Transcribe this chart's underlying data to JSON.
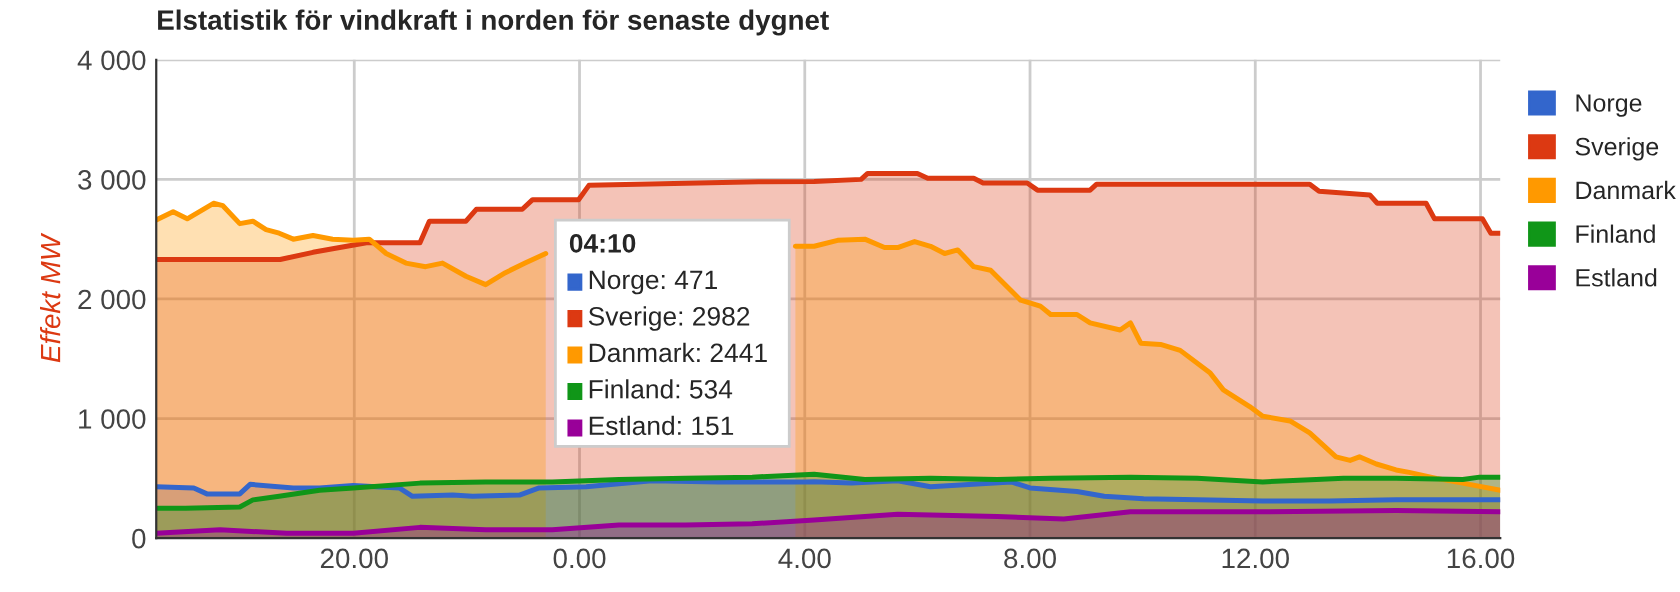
{
  "chart_data": {
    "type": "area",
    "title": "Elstatistik för vindkraft i norden för senaste dygnet",
    "ylabel": "Effekt MW",
    "xlim": [
      "2000-01-01T16:29",
      "2000-01-02T16:21"
    ],
    "xticks": [
      {
        "value": "2000-01-01T20:00",
        "label": "20.00"
      },
      {
        "value": "2000-01-02T00:00",
        "label": "0.00"
      },
      {
        "value": "2000-01-02T04:00",
        "label": "4.00"
      },
      {
        "value": "2000-01-02T08:00",
        "label": "8.00"
      },
      {
        "value": "2000-01-02T12:00",
        "label": "12.00"
      },
      {
        "value": "2000-01-02T16:00",
        "label": "16.00"
      }
    ],
    "ylim": [
      0,
      4000
    ],
    "yticks": [
      0,
      {
        "value": 1000,
        "label": "1 000"
      },
      {
        "value": 2000,
        "label": "2 000"
      },
      {
        "value": 3000,
        "label": "3 000"
      },
      {
        "value": 4000,
        "label": "4 000"
      }
    ],
    "grid": true,
    "legend": "right",
    "annotations": [
      "04:10",
      "Norge: 471",
      "Sverige: 2982",
      "Danmark: 2441",
      "Finland: 534",
      "Estland: 151"
    ],
    "series": [
      {
        "name": "Norge",
        "color": "#3366cc",
        "x": [
          "2000-01-01T16:29",
          "2000-01-01T17:09",
          "2000-01-01T17:23",
          "2000-01-01T17:58",
          "2000-01-01T18:09",
          "2000-01-01T18:55",
          "2000-01-01T19:23",
          "2000-01-01T19:59",
          "2000-01-01T20:48",
          "2000-01-01T21:02",
          "2000-01-01T21:45",
          "2000-01-01T22:06",
          "2000-01-01T22:56",
          "2000-01-01T23:17",
          "2000-01-02T00:07",
          "2000-01-02T01:17",
          "2000-01-02T02:28",
          "2000-01-02T04:00",
          "2000-01-02T04:10",
          "2000-01-02T04:50",
          "2000-01-02T05:39",
          "2000-01-02T06:14",
          "2000-01-02T07:40",
          "2000-01-02T08:00",
          "2000-01-02T08:50",
          "2000-01-02T09:19",
          "2000-01-02T10:01",
          "2000-01-02T10:58",
          "2000-01-02T12:08",
          "2000-01-02T13:19",
          "2000-01-02T14:30",
          "2000-01-02T16:21"
        ],
        "values": [
          430,
          420,
          370,
          370,
          450,
          420,
          420,
          440,
          420,
          350,
          360,
          350,
          360,
          420,
          430,
          480,
          470,
          470,
          471,
          460,
          480,
          430,
          470,
          420,
          390,
          350,
          330,
          320,
          310,
          310,
          320,
          320
        ]
      },
      {
        "name": "Sverige",
        "color": "#dc3912",
        "x": [
          "2000-01-01T16:29",
          "2000-01-01T18:41",
          "2000-01-01T19:16",
          "2000-01-01T20:13",
          "2000-01-01T21:10",
          "2000-01-01T21:20",
          "2000-01-01T21:59",
          "2000-01-01T22:10",
          "2000-01-01T22:59",
          "2000-01-01T23:10",
          "2000-01-01T23:59",
          "2000-01-02T00:10",
          "2000-01-02T03:11",
          "2000-01-02T04:10",
          "2000-01-02T05:00",
          "2000-01-02T05:07",
          "2000-01-02T06:00",
          "2000-01-02T06:11",
          "2000-01-02T07:00",
          "2000-01-02T07:10",
          "2000-01-02T07:57",
          "2000-01-02T08:08",
          "2000-01-02T09:04",
          "2000-01-02T09:11",
          "2000-01-02T12:58",
          "2000-01-02T13:08",
          "2000-01-02T14:02",
          "2000-01-02T14:10",
          "2000-01-02T15:02",
          "2000-01-02T15:11",
          "2000-01-02T16:02",
          "2000-01-02T16:11",
          "2000-01-02T16:21"
        ],
        "values": [
          2330,
          2330,
          2390,
          2470,
          2470,
          2650,
          2650,
          2750,
          2750,
          2830,
          2830,
          2950,
          2980,
          2982,
          3000,
          3050,
          3050,
          3010,
          3010,
          2970,
          2970,
          2910,
          2910,
          2960,
          2960,
          2900,
          2870,
          2800,
          2800,
          2670,
          2670,
          2550,
          2550
        ]
      },
      {
        "name": "Danmark",
        "color": "#ff9900",
        "x": [
          "2000-01-01T16:29",
          "2000-01-01T16:47",
          "2000-01-01T17:02",
          "2000-01-01T17:30",
          "2000-01-01T17:40",
          "2000-01-01T17:58",
          "2000-01-01T18:12",
          "2000-01-01T18:26",
          "2000-01-01T18:40",
          "2000-01-01T18:55",
          "2000-01-01T19:16",
          "2000-01-01T19:37",
          "2000-01-01T19:59",
          "2000-01-01T20:16",
          "2000-01-01T20:34",
          "2000-01-01T20:55",
          "2000-01-01T21:16",
          "2000-01-01T21:34",
          "2000-01-01T21:59",
          "2000-01-01T22:20",
          "2000-01-01T22:41",
          "2000-01-01T23:02",
          "2000-01-01T23:24",
          "2000-01-01T23:59",
          "2000-01-02T03:50",
          "2000-01-02T04:10",
          "2000-01-02T04:35",
          "2000-01-02T05:04",
          "2000-01-02T05:25",
          "2000-01-02T05:39",
          "2000-01-02T05:57",
          "2000-01-02T06:14",
          "2000-01-02T06:29",
          "2000-01-02T06:43",
          "2000-01-02T07:00",
          "2000-01-02T07:18",
          "2000-01-02T07:50",
          "2000-01-02T08:11",
          "2000-01-02T08:22",
          "2000-01-02T08:50",
          "2000-01-02T09:04",
          "2000-01-02T09:36",
          "2000-01-02T09:47",
          "2000-01-02T09:58",
          "2000-01-02T10:19",
          "2000-01-02T10:40",
          "2000-01-02T11:12",
          "2000-01-02T11:26",
          "2000-01-02T11:54",
          "2000-01-02T12:08",
          "2000-01-02T12:37",
          "2000-01-02T12:58",
          "2000-01-02T13:26",
          "2000-01-02T13:41",
          "2000-01-02T13:51",
          "2000-01-02T14:09",
          "2000-01-02T14:30",
          "2000-01-02T14:44",
          "2000-01-02T15:13",
          "2000-01-02T15:41",
          "2000-01-02T16:21"
        ],
        "values": [
          2660,
          2730,
          2670,
          2800,
          2780,
          2630,
          2650,
          2580,
          2550,
          2500,
          2530,
          2500,
          2490,
          2500,
          2380,
          2300,
          2270,
          2300,
          2190,
          2120,
          2220,
          2300,
          2380,
          null,
          2440,
          2441,
          2490,
          2500,
          2430,
          2430,
          2480,
          2440,
          2380,
          2410,
          2270,
          2240,
          1990,
          1940,
          1870,
          1870,
          1800,
          1740,
          1800,
          1630,
          1620,
          1570,
          1380,
          1240,
          1100,
          1020,
          980,
          880,
          680,
          650,
          680,
          620,
          570,
          550,
          500,
          460,
          400
        ]
      },
      {
        "name": "Finland",
        "color": "#109618",
        "x": [
          "2000-01-01T16:29",
          "2000-01-01T17:00",
          "2000-01-01T17:58",
          "2000-01-01T18:12",
          "2000-01-01T18:40",
          "2000-01-01T19:23",
          "2000-01-01T19:59",
          "2000-01-01T21:10",
          "2000-01-01T22:20",
          "2000-01-01T23:31",
          "2000-01-02T00:42",
          "2000-01-02T01:53",
          "2000-01-02T03:04",
          "2000-01-02T04:10",
          "2000-01-02T05:04",
          "2000-01-02T06:14",
          "2000-01-02T07:25",
          "2000-01-02T08:22",
          "2000-01-02T09:47",
          "2000-01-02T10:58",
          "2000-01-02T12:08",
          "2000-01-02T13:05",
          "2000-01-02T13:34",
          "2000-01-02T14:30",
          "2000-01-02T15:41",
          "2000-01-02T15:59",
          "2000-01-02T16:21"
        ],
        "values": [
          250,
          250,
          260,
          320,
          350,
          400,
          420,
          460,
          470,
          470,
          490,
          500,
          510,
          534,
          490,
          500,
          490,
          500,
          510,
          500,
          470,
          490,
          500,
          500,
          490,
          510,
          510
        ]
      },
      {
        "name": "Estland",
        "color": "#990099",
        "x": [
          "2000-01-01T16:29",
          "2000-01-01T17:37",
          "2000-01-01T18:48",
          "2000-01-01T19:59",
          "2000-01-01T21:10",
          "2000-01-01T22:20",
          "2000-01-01T23:31",
          "2000-01-02T00:42",
          "2000-01-02T01:53",
          "2000-01-02T03:04",
          "2000-01-02T04:10",
          "2000-01-02T05:39",
          "2000-01-02T07:25",
          "2000-01-02T08:36",
          "2000-01-02T09:47",
          "2000-01-02T12:08",
          "2000-01-02T14:30",
          "2000-01-02T16:21"
        ],
        "values": [
          40,
          70,
          40,
          40,
          90,
          70,
          70,
          110,
          110,
          120,
          151,
          200,
          180,
          160,
          220,
          220,
          230,
          220
        ]
      }
    ]
  }
}
